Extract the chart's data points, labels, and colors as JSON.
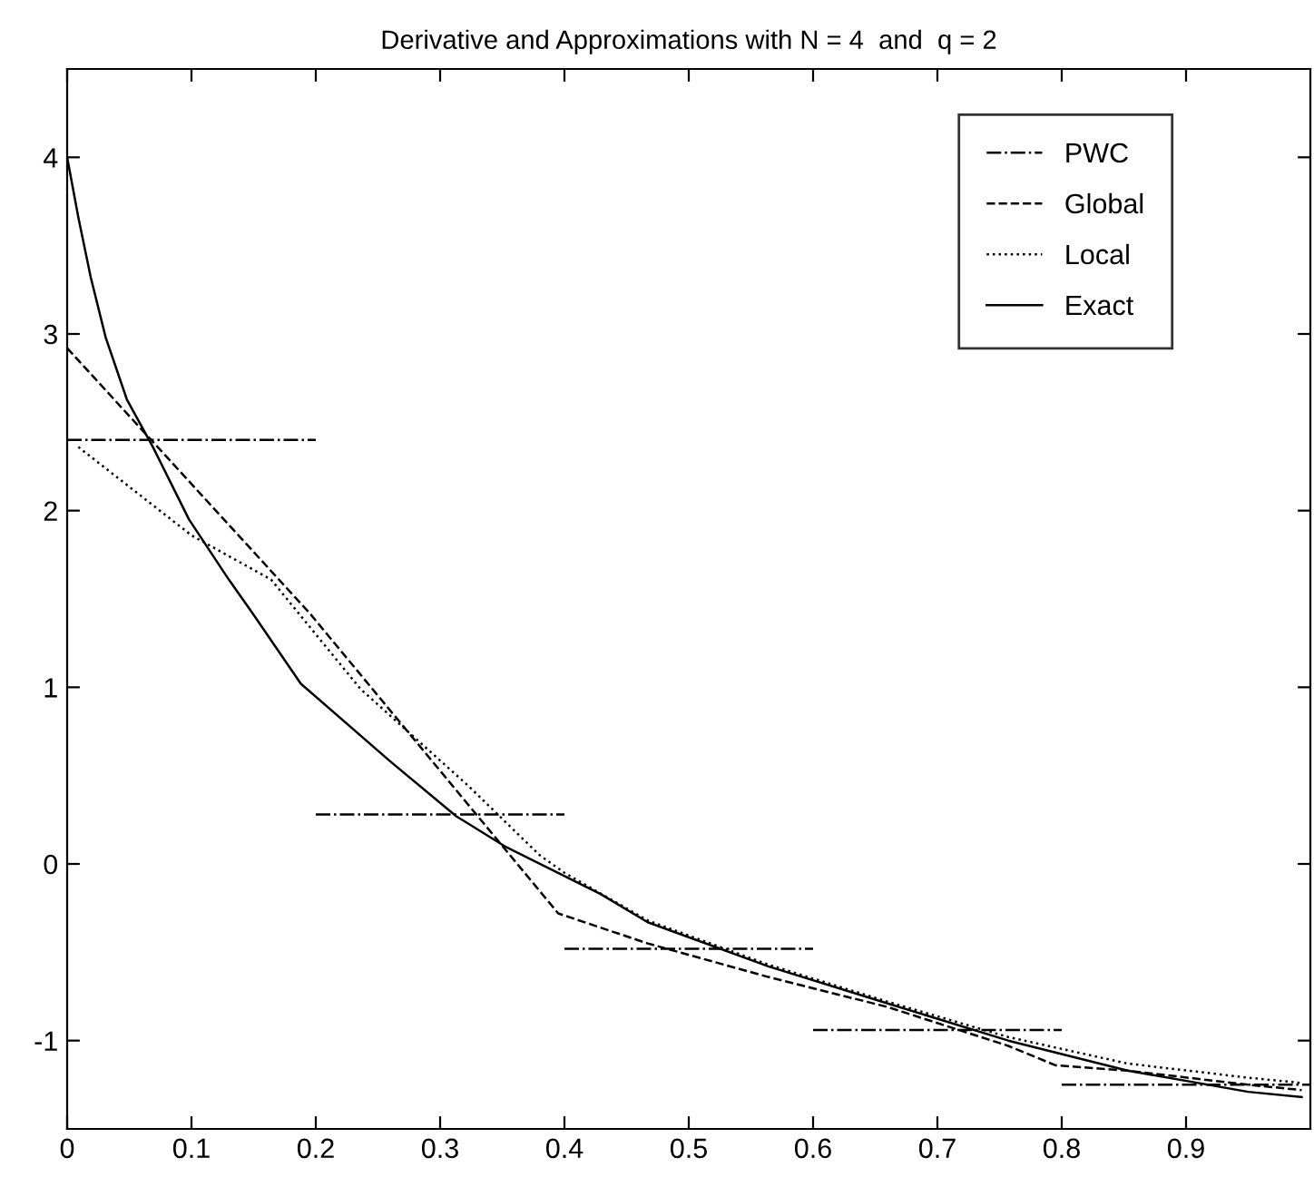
{
  "chart_data": {
    "type": "line",
    "title": "Derivative and Approximations with N = 4  and  q = 2",
    "xlim": [
      0,
      1
    ],
    "xticks": [
      0,
      0.1,
      0.2,
      0.3,
      0.4,
      0.5,
      0.6,
      0.7,
      0.8,
      0.9
    ],
    "ylim": [
      -1.5,
      4.5
    ],
    "yticks": [
      -1,
      0,
      1,
      2,
      3,
      4
    ],
    "grid": false,
    "legend": "top right",
    "marker": "none",
    "series": [
      {
        "name": "PWC",
        "color": "#000000",
        "line_style": "dashdot",
        "x": [
          0,
          0.2,
          null,
          0.2,
          0.4,
          null,
          0.4,
          0.6,
          null,
          0.6,
          0.8,
          null,
          0.8,
          1.0
        ],
        "values": [
          2.4,
          2.4,
          null,
          0.28,
          0.28,
          null,
          -0.48,
          -0.48,
          null,
          -0.94,
          -0.94,
          null,
          -1.25,
          -1.25
        ]
      },
      {
        "name": "Global",
        "color": "#000000",
        "line_style": "dashed",
        "x": [
          0,
          0.195,
          0.395,
          0.467,
          0.564,
          0.66,
          0.757,
          0.795,
          0.853,
          0.95,
          0.993
        ],
        "values": [
          2.92,
          1.42,
          -0.28,
          -0.45,
          -0.64,
          -0.81,
          -1.03,
          -1.14,
          -1.17,
          -1.25,
          -1.28
        ]
      },
      {
        "name": "Local",
        "color": "#000000",
        "line_style": "dotted",
        "x": [
          0.009,
          0.1,
          0.164,
          0.236,
          0.323,
          0.38,
          0.4,
          0.467,
          0.564,
          0.66,
          0.757,
          0.853,
          0.95,
          0.993
        ],
        "values": [
          2.36,
          1.86,
          1.61,
          0.99,
          0.44,
          0.05,
          -0.05,
          -0.32,
          -0.57,
          -0.78,
          -0.98,
          -1.13,
          -1.21,
          -1.24
        ]
      },
      {
        "name": "Exact",
        "color": "#000000",
        "line_style": "solid",
        "x": [
          0,
          0.009,
          0.019,
          0.031,
          0.048,
          0.069,
          0.098,
          0.13,
          0.149,
          0.188,
          0.26,
          0.313,
          0.352,
          0.429,
          0.467,
          0.564,
          0.66,
          0.757,
          0.853,
          0.95,
          0.993
        ],
        "values": [
          4,
          3.66,
          3.32,
          2.98,
          2.63,
          2.36,
          1.95,
          1.61,
          1.42,
          1.02,
          0.58,
          0.27,
          0.1,
          -0.17,
          -0.33,
          -0.58,
          -0.79,
          -1.0,
          -1.17,
          -1.29,
          -1.32
        ]
      }
    ]
  }
}
